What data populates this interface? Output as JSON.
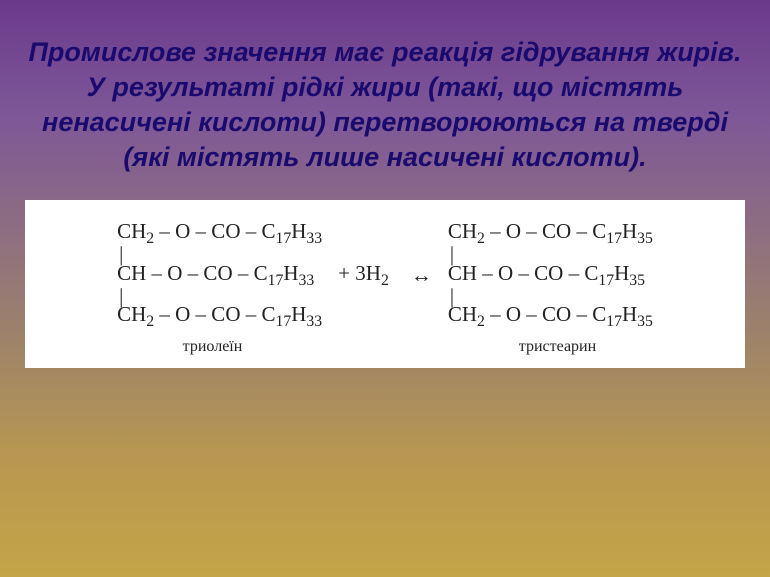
{
  "heading": {
    "text": "Промислове значення має реакція гідрування жирів. У результаті рідкі жири (такі, що містять ненасичені кислоти) перетворюються на тверді (які містять лише насичені кислоти).",
    "color": "#1a0a6e",
    "fontsize": 27
  },
  "background": {
    "gradient_top": "#6b3a8a",
    "gradient_bottom": "#c4a548"
  },
  "reaction": {
    "type": "chemical-equation",
    "reactant": {
      "line1": {
        "prefix": "CH",
        "sub1": "2",
        "mid": " – O – CO – C",
        "sub2": "17",
        "h": "H",
        "sub3": "33"
      },
      "bond1": "|",
      "line2": {
        "prefix": "CH",
        "sub1": "",
        "mid": " – O – CO – C",
        "sub2": "17",
        "h": "H",
        "sub3": "33"
      },
      "bond2": "|",
      "line3": {
        "prefix": "CH",
        "sub1": "2",
        "mid": " – O – CO – C",
        "sub2": "17",
        "h": "H",
        "sub3": "33"
      },
      "label": "триолеїн"
    },
    "hydrogen": {
      "coeff": "3",
      "formula": "H",
      "sub": "2"
    },
    "plus": "+",
    "arrow": "↔",
    "product": {
      "line1": {
        "prefix": "CH",
        "sub1": "2",
        "mid": " – O – CO – C",
        "sub2": "17",
        "h": "H",
        "sub3": "35"
      },
      "bond1": "|",
      "line2": {
        "prefix": "CH",
        "sub1": "",
        "mid": " – O – CO – C",
        "sub2": "17",
        "h": "H",
        "sub3": "35"
      },
      "bond2": "|",
      "line3": {
        "prefix": "CH",
        "sub1": "2",
        "mid": " – O – CO – C",
        "sub2": "17",
        "h": "H",
        "sub3": "35"
      },
      "label": "тристеарин"
    },
    "formula_fontsize": 21,
    "label_fontsize": 16,
    "box_background": "#ffffff",
    "text_color": "#222222"
  }
}
